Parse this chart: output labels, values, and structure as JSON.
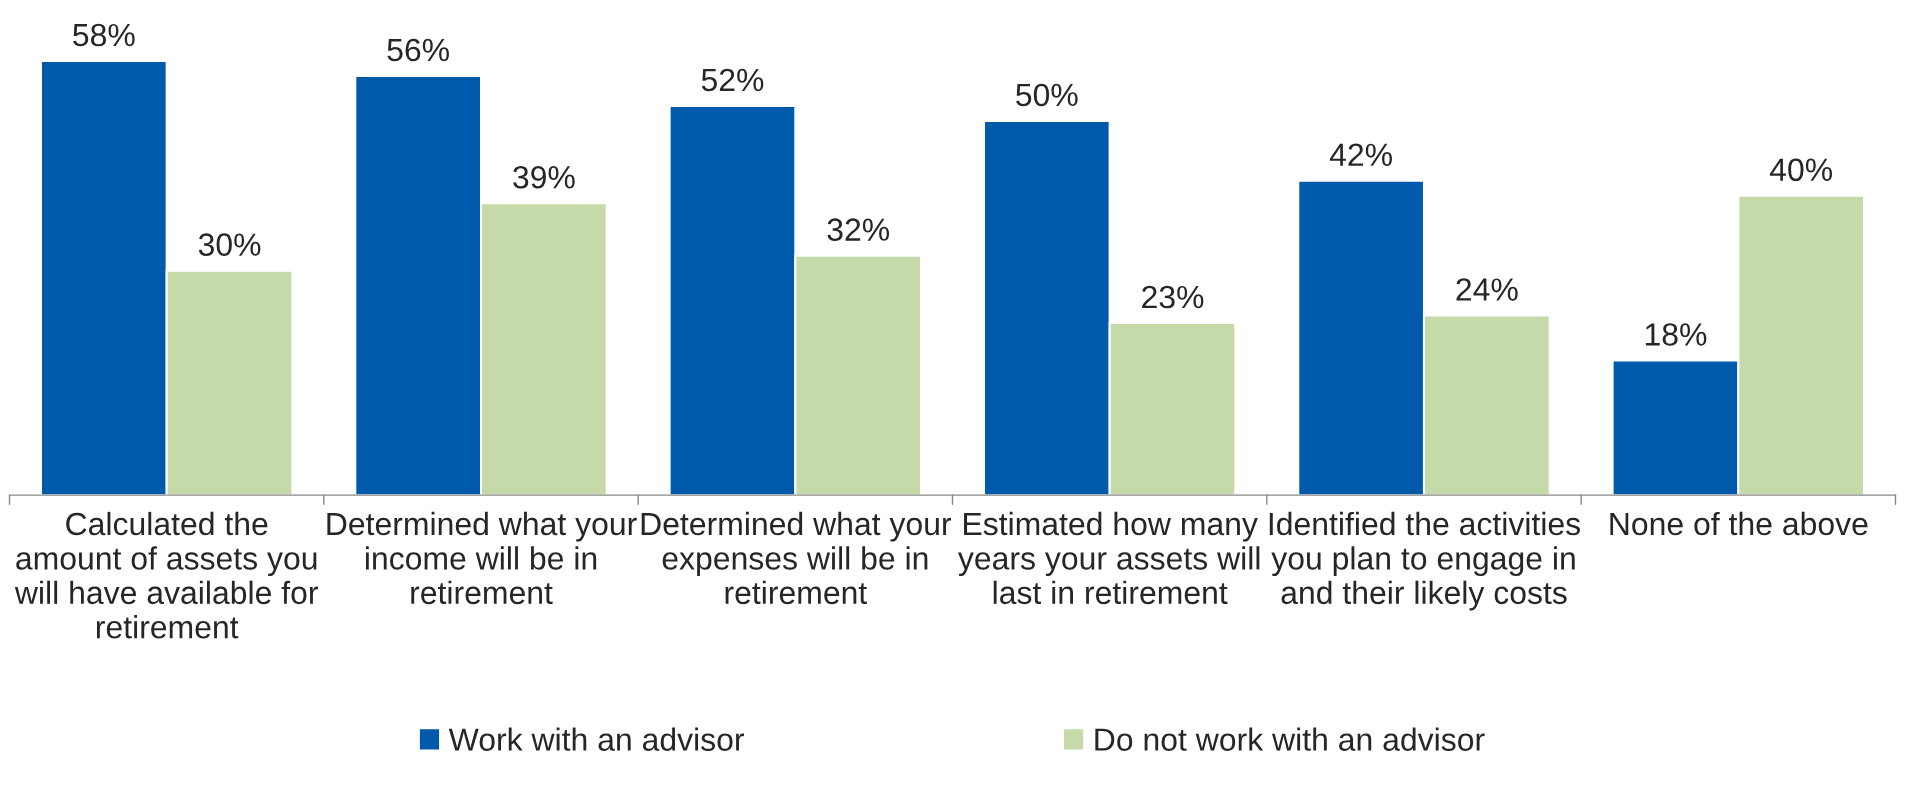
{
  "chart_data": {
    "type": "bar",
    "categories": [
      "Calculated the\namount of assets you\nwill have available for\nretirement",
      "Determined what your\nincome will be in\nretirement",
      "Determined what your\nexpenses will be in\nretirement",
      "Estimated how many\nyears your assets will\nlast in retirement",
      "Identified the activities\nyou plan to engage in\nand their likely costs",
      "None of the above"
    ],
    "series": [
      {
        "name": "Work with an advisor",
        "color": "#005aab",
        "values": [
          58,
          56,
          52,
          50,
          42,
          18
        ],
        "value_labels": [
          "58%",
          "56%",
          "52%",
          "50%",
          "42%",
          "18%"
        ]
      },
      {
        "name": "Do not work with an advisor",
        "color": "#c5d9a9",
        "values": [
          30,
          39,
          32,
          23,
          24,
          40
        ],
        "value_labels": [
          "30%",
          "39%",
          "32%",
          "23%",
          "24%",
          "40%"
        ]
      }
    ],
    "grid": false,
    "legend": "bottom"
  }
}
